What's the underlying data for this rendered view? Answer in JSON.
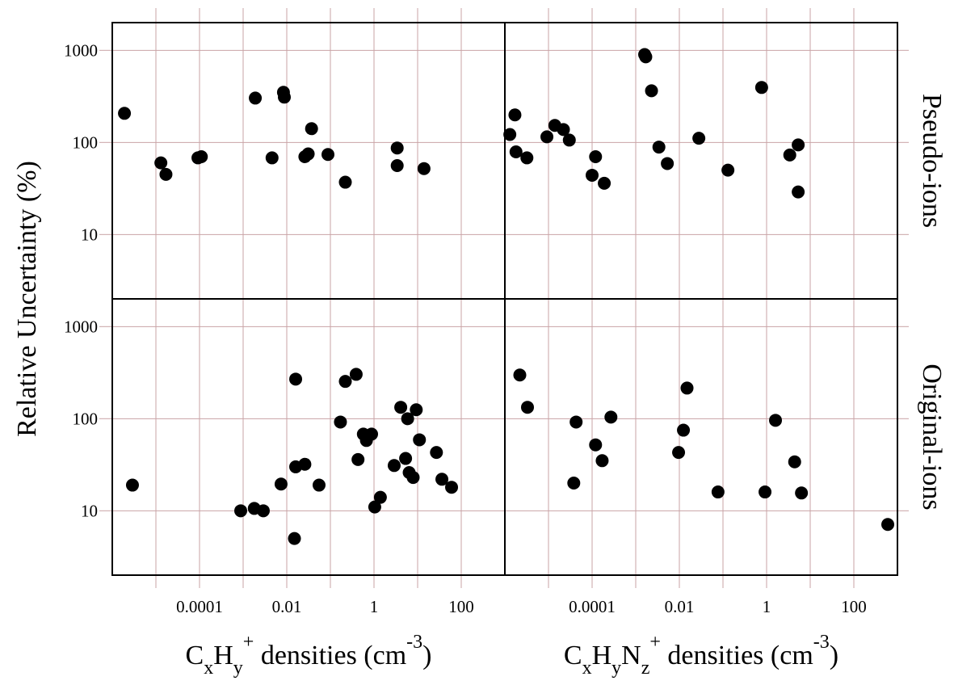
{
  "chart_data": [
    {
      "type": "scatter",
      "ylabel": "Relative Uncertainty (%)",
      "color": "#000000",
      "xlog": true,
      "ylog": true,
      "grid": true,
      "xlim": [
        1e-06,
        1000
      ],
      "ylim": [
        2,
        2000
      ],
      "xticks": [
        0.0001,
        0.01,
        1,
        100
      ],
      "xminor": [
        1e-05,
        0.001,
        0.1,
        10
      ],
      "yticks": [
        10,
        100,
        1000
      ],
      "xtick_labels": false,
      "ytick_labels": true,
      "x": [
        1.9e-06,
        1.3e-05,
        1.7e-05,
        9.2e-05,
        0.00011,
        0.0019,
        0.0046,
        0.0084,
        0.0088,
        0.037,
        0.026,
        0.031,
        0.088,
        0.22,
        3.4,
        3.4,
        14
      ],
      "values": [
        207,
        60,
        45,
        68,
        70,
        303,
        68,
        350,
        310,
        141,
        70,
        75,
        74,
        37,
        87,
        56,
        52
      ]
    },
    {
      "type": "scatter",
      "strip": "Pseudo-ions",
      "color": "#000000",
      "xlog": true,
      "ylog": true,
      "grid": true,
      "xlim": [
        1e-06,
        1000
      ],
      "ylim": [
        2,
        2000
      ],
      "xticks": [
        0.0001,
        0.01,
        1,
        100
      ],
      "xminor": [
        1e-05,
        0.001,
        0.1,
        10
      ],
      "yticks": [
        10,
        100,
        1000
      ],
      "xtick_labels": false,
      "ytick_labels": false,
      "x": [
        1.3e-06,
        1.7e-06,
        1.8e-06,
        3.2e-06,
        9.2e-06,
        1.4e-05,
        2.2e-05,
        3e-05,
        0.0001,
        0.00012,
        0.00019,
        0.0016,
        0.0017,
        0.0023,
        0.0034,
        0.0053,
        0.028,
        0.13,
        0.77,
        3.4,
        5.3,
        5.3
      ],
      "values": [
        122,
        199,
        79,
        68,
        115,
        153,
        138,
        106,
        44,
        70,
        36,
        900,
        850,
        364,
        89,
        59,
        111,
        50,
        395,
        73,
        94,
        29
      ]
    },
    {
      "type": "scatter",
      "xlabel": [
        "C",
        "x",
        "H",
        "y",
        "+",
        " densities (cm",
        "-3",
        ")"
      ],
      "color": "#000000",
      "xlog": true,
      "ylog": true,
      "grid": true,
      "xlim": [
        1e-06,
        1000
      ],
      "ylim": [
        2,
        2000
      ],
      "xticks": [
        0.0001,
        0.01,
        1,
        100
      ],
      "xminor": [
        1e-05,
        0.001,
        0.1,
        10
      ],
      "yticks": [
        10,
        100,
        1000
      ],
      "xtick_labels": true,
      "ytick_labels": true,
      "x": [
        2.9e-06,
        0.00088,
        0.0018,
        0.0029,
        0.016,
        0.015,
        0.016,
        0.026,
        0.0074,
        0.055,
        0.17,
        0.22,
        0.39,
        0.43,
        0.57,
        0.67,
        0.88,
        1.04,
        1.4,
        2.9,
        4.1,
        5.3,
        5.9,
        6.4,
        7.9,
        9.3,
        11,
        27,
        36,
        60
      ],
      "values": [
        19,
        10,
        10.6,
        10,
        269,
        5,
        30,
        32,
        19.5,
        19,
        92,
        254,
        303,
        36,
        68,
        58,
        68,
        11,
        14,
        31,
        133,
        37,
        100,
        26,
        23,
        125,
        59,
        43,
        22,
        18
      ]
    },
    {
      "type": "scatter",
      "xlabel": [
        "C",
        "x",
        "H",
        "y",
        "N",
        "z",
        "+",
        " densities (cm",
        "-3",
        ")"
      ],
      "strip": "Original-ions",
      "color": "#000000",
      "xlog": true,
      "ylog": true,
      "grid": true,
      "xlim": [
        1e-06,
        1000
      ],
      "ylim": [
        2,
        2000
      ],
      "xticks": [
        0.0001,
        0.01,
        1,
        100
      ],
      "xminor": [
        1e-05,
        0.001,
        0.1,
        10
      ],
      "yticks": [
        10,
        100,
        1000
      ],
      "xtick_labels": true,
      "ytick_labels": false,
      "x": [
        2.2e-06,
        3.3e-06,
        3.8e-05,
        4.3e-05,
        0.00012,
        0.00017,
        0.00027,
        0.0096,
        0.0124,
        0.015,
        0.077,
        0.92,
        1.6,
        4.4,
        6.3,
        600
      ],
      "values": [
        298,
        133,
        20,
        92,
        52,
        35,
        104,
        43,
        75,
        215,
        16,
        16,
        96,
        34,
        15.6,
        7.1
      ]
    }
  ]
}
